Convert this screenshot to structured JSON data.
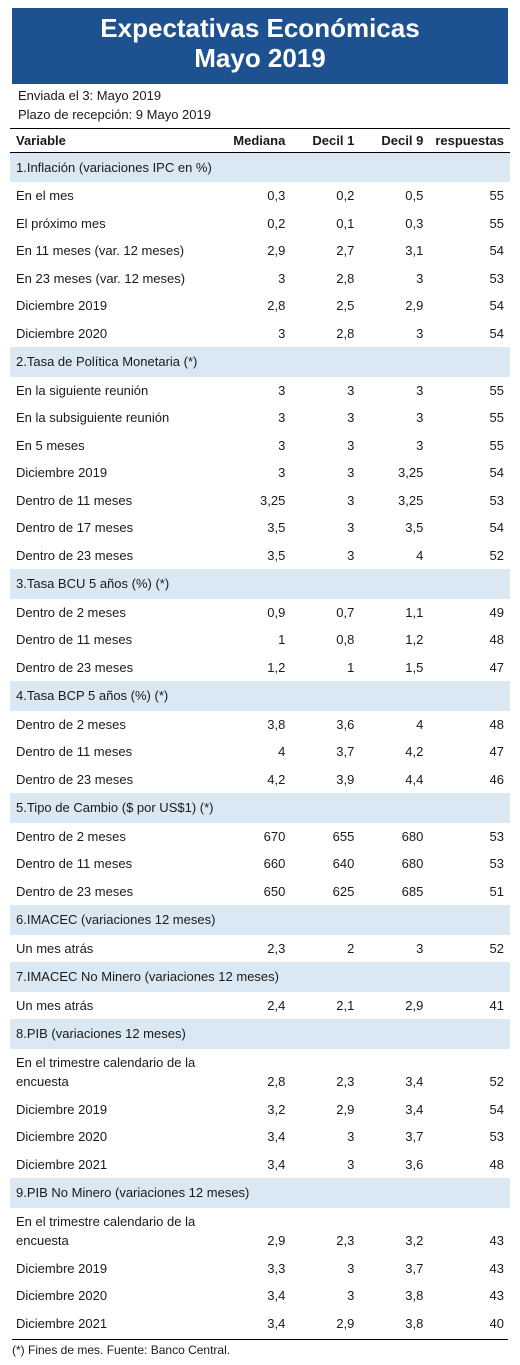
{
  "colors": {
    "banner_bg": "#1d518f",
    "banner_text": "#ffffff",
    "section_bg": "#d9e8f3",
    "rule": "#000000",
    "text": "#1a1a1a"
  },
  "typography": {
    "title_fontsize": 26,
    "body_fontsize": 13,
    "foot_fontsize": 12,
    "title_weight": 700,
    "header_weight": 700
  },
  "title_line1": "Expectativas Económicas",
  "title_line2": "Mayo 2019",
  "meta_sent": "Enviada el 3: Mayo 2019",
  "meta_deadline": "Plazo de recepción: 9 Mayo 2019",
  "columns": [
    "Variable",
    "Mediana",
    "Decil 1",
    "Decil 9",
    "respuestas"
  ],
  "sections": [
    {
      "title": "1.Inflación (variaciones IPC en %)",
      "rows": [
        {
          "label": "En el mes",
          "mediana": "0,3",
          "d1": "0,2",
          "d9": "0,5",
          "resp": "55"
        },
        {
          "label": "El próximo mes",
          "mediana": "0,2",
          "d1": "0,1",
          "d9": "0,3",
          "resp": "55"
        },
        {
          "label": "En 11 meses (var. 12 meses)",
          "mediana": "2,9",
          "d1": "2,7",
          "d9": "3,1",
          "resp": "54"
        },
        {
          "label": "En 23 meses (var. 12 meses)",
          "mediana": "3",
          "d1": "2,8",
          "d9": "3",
          "resp": "53"
        },
        {
          "label": "Diciembre 2019",
          "mediana": "2,8",
          "d1": "2,5",
          "d9": "2,9",
          "resp": "54"
        },
        {
          "label": "Diciembre 2020",
          "mediana": "3",
          "d1": "2,8",
          "d9": "3",
          "resp": "54"
        }
      ]
    },
    {
      "title": "2.Tasa de Política Monetaria  (*)",
      "rows": [
        {
          "label": "En la siguiente reunión",
          "mediana": "3",
          "d1": "3",
          "d9": "3",
          "resp": "55"
        },
        {
          "label": "En la subsiguiente reunión",
          "mediana": "3",
          "d1": "3",
          "d9": "3",
          "resp": "55"
        },
        {
          "label": "En 5 meses",
          "mediana": "3",
          "d1": "3",
          "d9": "3",
          "resp": "55"
        },
        {
          "label": "Diciembre 2019",
          "mediana": "3",
          "d1": "3",
          "d9": "3,25",
          "resp": "54"
        },
        {
          "label": "Dentro de 11 meses",
          "mediana": "3,25",
          "d1": "3",
          "d9": "3,25",
          "resp": "53"
        },
        {
          "label": "Dentro de 17 meses",
          "mediana": "3,5",
          "d1": "3",
          "d9": "3,5",
          "resp": "54"
        },
        {
          "label": "Dentro de 23 meses",
          "mediana": "3,5",
          "d1": "3",
          "d9": "4",
          "resp": "52"
        }
      ]
    },
    {
      "title": "3.Tasa BCU 5 años  (%)  (*)",
      "rows": [
        {
          "label": "Dentro de 2 meses",
          "mediana": "0,9",
          "d1": "0,7",
          "d9": "1,1",
          "resp": "49"
        },
        {
          "label": "Dentro de 11 meses",
          "mediana": "1",
          "d1": "0,8",
          "d9": "1,2",
          "resp": "48"
        },
        {
          "label": "Dentro de 23 meses",
          "mediana": "1,2",
          "d1": "1",
          "d9": "1,5",
          "resp": "47"
        }
      ]
    },
    {
      "title": "4.Tasa BCP 5 años  (%) (*)",
      "rows": [
        {
          "label": "Dentro de 2 meses",
          "mediana": "3,8",
          "d1": "3,6",
          "d9": "4",
          "resp": "48"
        },
        {
          "label": "Dentro de 11 meses",
          "mediana": "4",
          "d1": "3,7",
          "d9": "4,2",
          "resp": "47"
        },
        {
          "label": "Dentro de 23 meses",
          "mediana": "4,2",
          "d1": "3,9",
          "d9": "4,4",
          "resp": "46"
        }
      ]
    },
    {
      "title": "5.Tipo de Cambio  ($ por US$1) (*)",
      "rows": [
        {
          "label": "Dentro de 2 meses",
          "mediana": "670",
          "d1": "655",
          "d9": "680",
          "resp": "53"
        },
        {
          "label": "Dentro de 11 meses",
          "mediana": "660",
          "d1": "640",
          "d9": "680",
          "resp": "53"
        },
        {
          "label": "Dentro de 23 meses",
          "mediana": "650",
          "d1": "625",
          "d9": "685",
          "resp": "51"
        }
      ]
    },
    {
      "title": "6.IMACEC  (variaciones 12 meses)",
      "rows": [
        {
          "label": "Un mes atrás",
          "mediana": "2,3",
          "d1": "2",
          "d9": "3",
          "resp": "52"
        }
      ]
    },
    {
      "title": "7.IMACEC No Minero (variaciones 12 meses)",
      "rows": [
        {
          "label": "Un mes atrás",
          "mediana": "2,4",
          "d1": "2,1",
          "d9": "2,9",
          "resp": "41"
        }
      ]
    },
    {
      "title": "8.PIB  (variaciones 12 meses)",
      "rows": [
        {
          "label": "En el trimestre calendario de la encuesta",
          "mediana": "2,8",
          "d1": "2,3",
          "d9": "3,4",
          "resp": "52"
        },
        {
          "label": "Diciembre 2019",
          "mediana": "3,2",
          "d1": "2,9",
          "d9": "3,4",
          "resp": "54"
        },
        {
          "label": "Diciembre 2020",
          "mediana": "3,4",
          "d1": "3",
          "d9": "3,7",
          "resp": "53"
        },
        {
          "label": "Diciembre 2021",
          "mediana": "3,4",
          "d1": "3",
          "d9": "3,6",
          "resp": "48"
        }
      ]
    },
    {
      "title": "9.PIB No Minero (variaciones 12 meses)",
      "rows": [
        {
          "label": "En el trimestre calendario de la encuesta",
          "mediana": "2,9",
          "d1": "2,3",
          "d9": "3,2",
          "resp": "43"
        },
        {
          "label": "Diciembre 2019",
          "mediana": "3,3",
          "d1": "3",
          "d9": "3,7",
          "resp": "43"
        },
        {
          "label": "Diciembre 2020",
          "mediana": "3,4",
          "d1": "3",
          "d9": "3,8",
          "resp": "43"
        },
        {
          "label": "Diciembre 2021",
          "mediana": "3,4",
          "d1": "2,9",
          "d9": "3,8",
          "resp": "40"
        }
      ]
    }
  ],
  "footnote": "(*) Fines de mes.   Fuente: Banco Central."
}
